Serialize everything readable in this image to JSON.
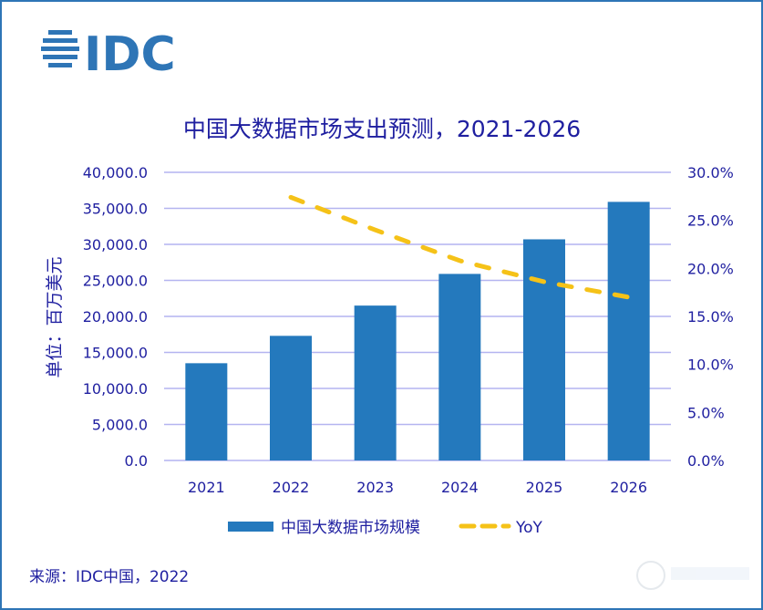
{
  "logo": {
    "text": "IDC",
    "color": "#2e75b6"
  },
  "chart_data": {
    "type": "bar+line",
    "title": "中国大数据市场支出预测，2021-2026",
    "ylabel": "单位：百万美元",
    "categories": [
      "2021",
      "2022",
      "2023",
      "2024",
      "2025",
      "2026"
    ],
    "ylim": [
      0,
      40000
    ],
    "y2lim": [
      0,
      30
    ],
    "yticks": [
      "0.0",
      "5,000.0",
      "10,000.0",
      "15,000.0",
      "20,000.0",
      "25,000.0",
      "30,000.0",
      "35,000.0",
      "40,000.0"
    ],
    "y2ticks": [
      "0.0%",
      "5.0%",
      "10.0%",
      "15.0%",
      "20.0%",
      "25.0%",
      "30.0%"
    ],
    "grid": true,
    "legend_placement": "bottom",
    "series": [
      {
        "name": "中国大数据市场规模",
        "type": "bar",
        "axis": "left",
        "color": "#2479bd",
        "values": [
          13500,
          17300,
          21500,
          25900,
          30700,
          35900
        ]
      },
      {
        "name": "YoY",
        "type": "line",
        "style": "dashed",
        "axis": "right",
        "unit": "%",
        "color": "#f5c218",
        "values": [
          null,
          27.4,
          24.0,
          20.8,
          18.6,
          17.0
        ]
      }
    ],
    "source": "来源：IDC中国，2022"
  },
  "colors": {
    "text": "#1f1fa0",
    "grid": "#b4b4f0",
    "border": "#2e75b6"
  }
}
